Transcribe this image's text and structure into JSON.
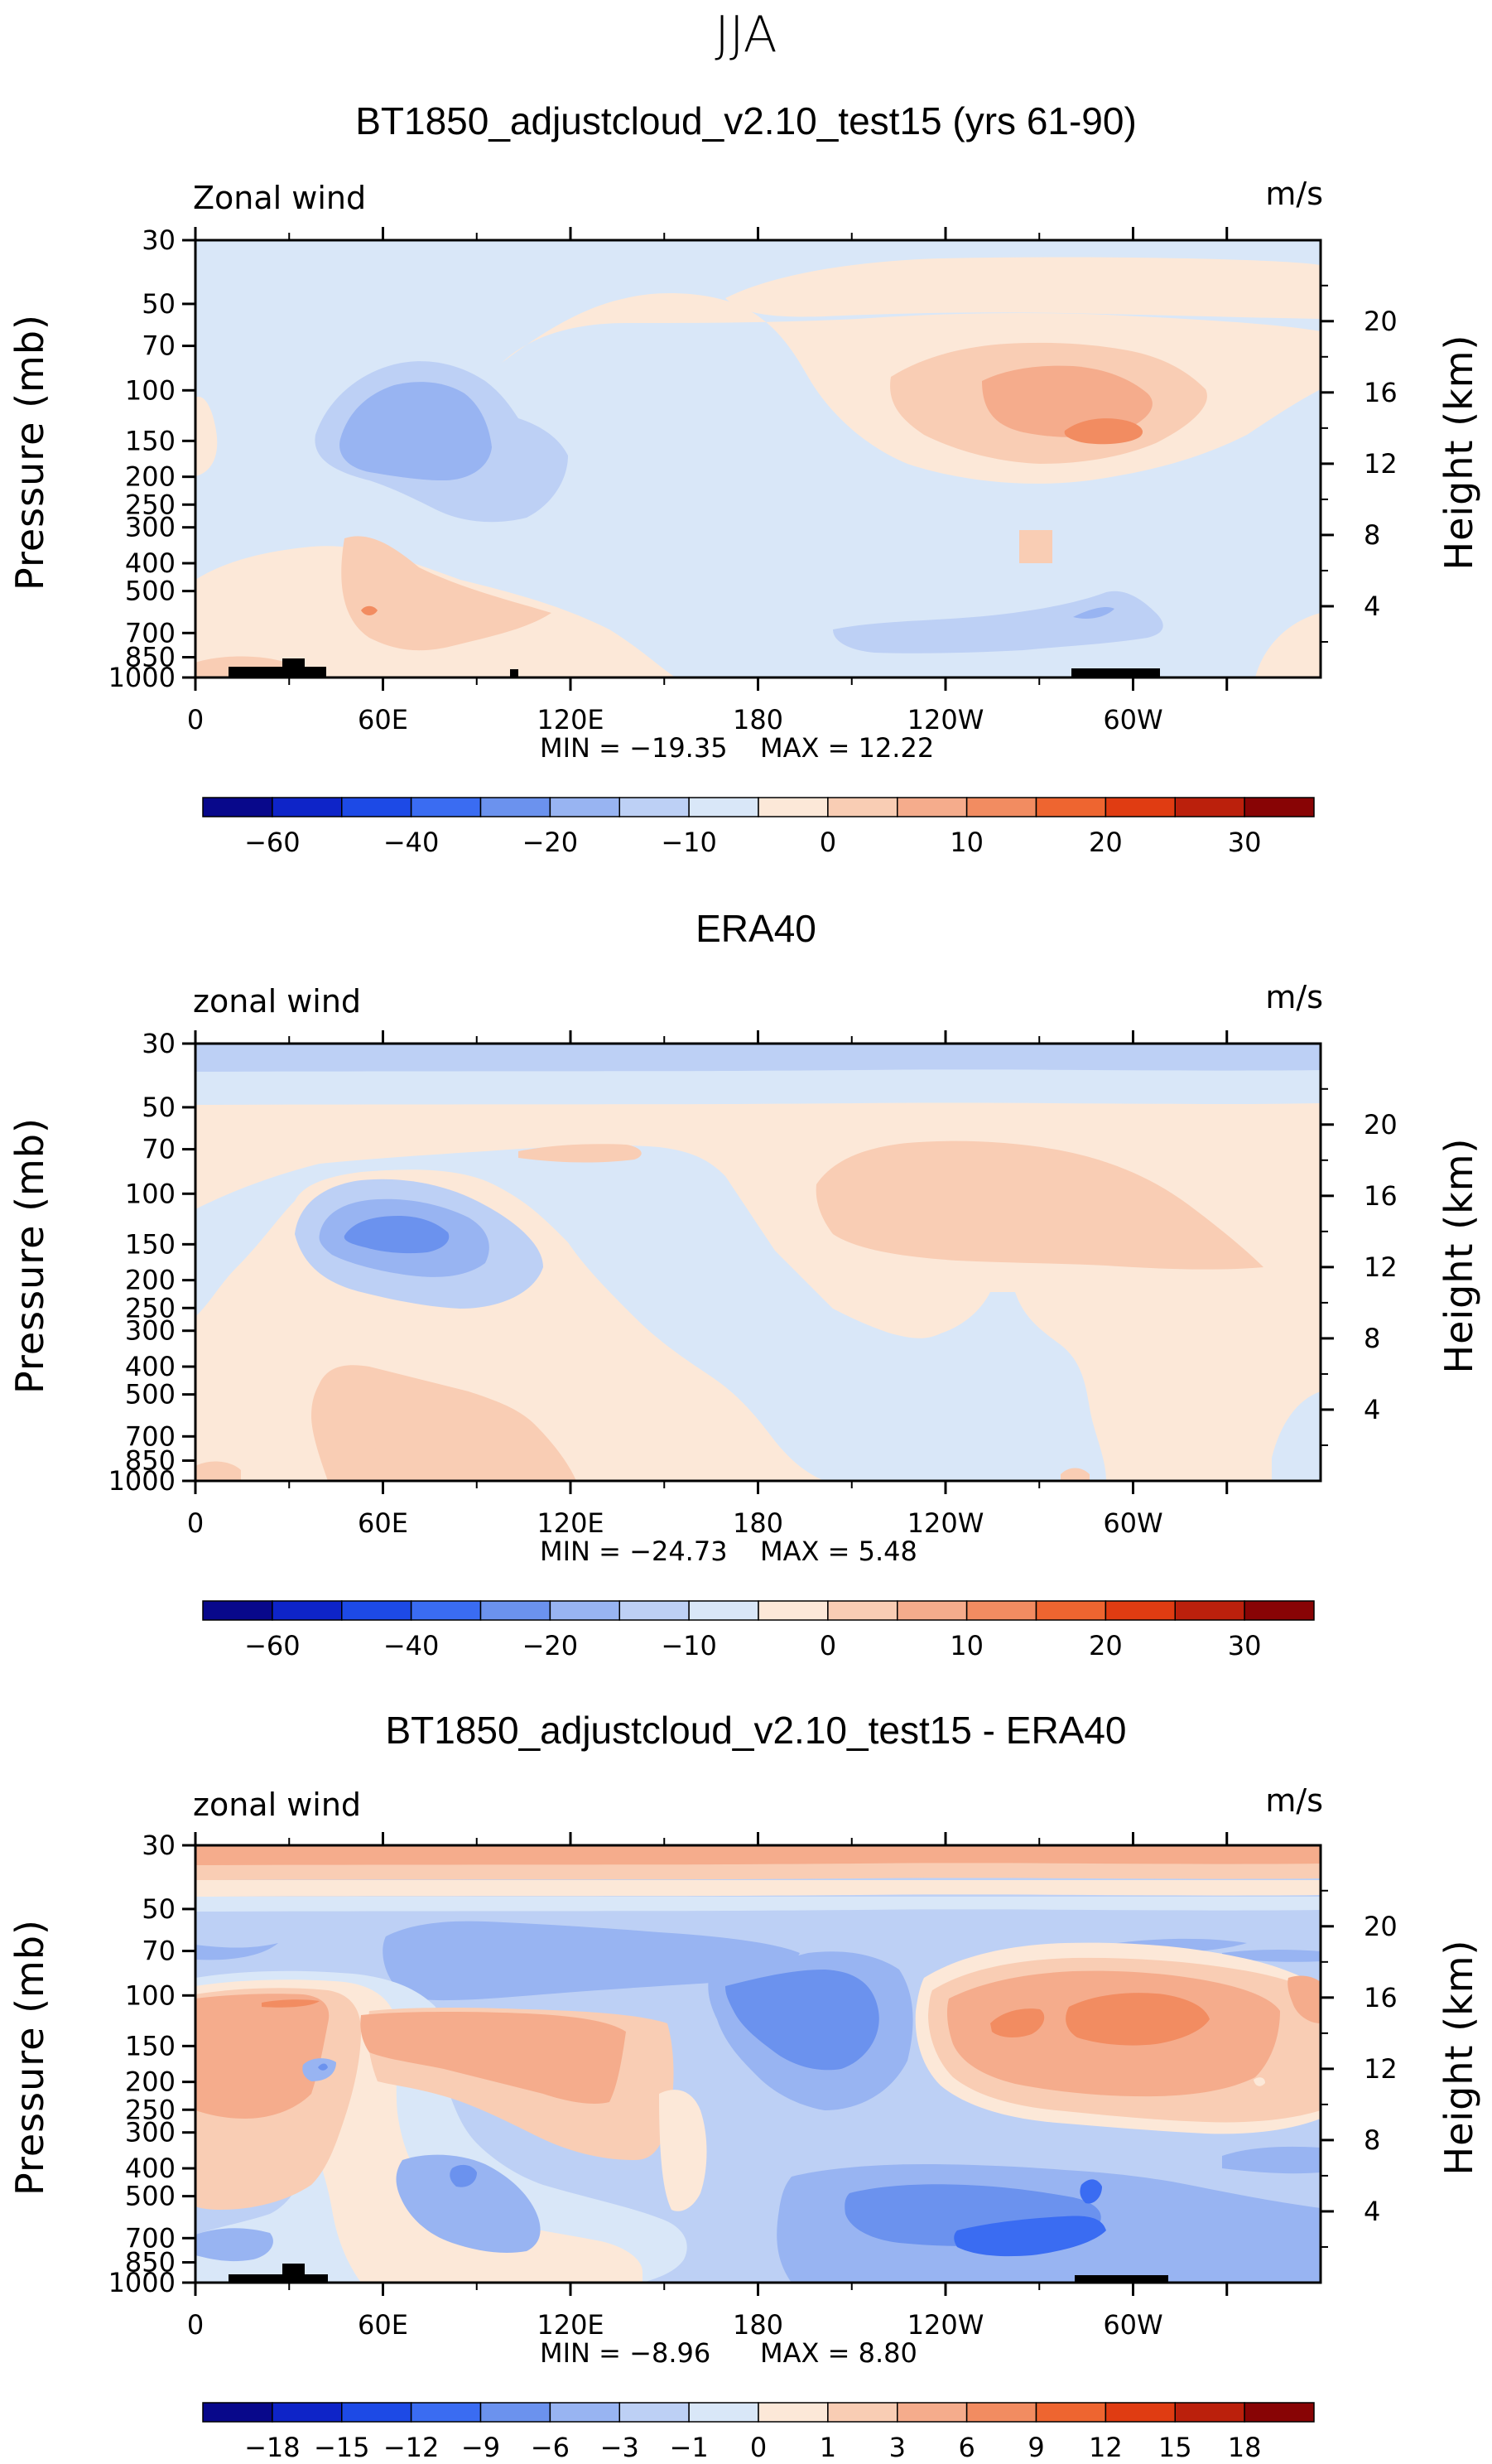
{
  "season": "JJA",
  "colors": {
    "scale": [
      "#08088b",
      "#0e24c8",
      "#1d4ae6",
      "#3a6cf2",
      "#6b92ee",
      "#98b4f2",
      "#bdd0f5",
      "#d9e7f8",
      "#fce8d8",
      "#f9cdb4",
      "#f5ac8c",
      "#f28c61",
      "#ee6530",
      "#e03c12",
      "#bb200c",
      "#880405"
    ],
    "land": "#000000"
  },
  "chart_data": [
    {
      "type": "heatmap",
      "title": "BT1850_adjustcloud_v2.10_test15 (yrs 61-90)",
      "variable_label": "Zonal wind",
      "units": "m/s",
      "ylabel": "Pressure (mb)",
      "ylabel_right": "Height (km)",
      "x_ticks": [
        "0",
        "60E",
        "120E",
        "180",
        "120W",
        "60W"
      ],
      "y_ticks": [
        "30",
        "50",
        "70",
        "100",
        "150",
        "200",
        "250",
        "300",
        "400",
        "500",
        "700",
        "850",
        "1000"
      ],
      "y2_ticks": [
        "20",
        "16",
        "12",
        "8",
        "4"
      ],
      "xlim": [
        0,
        360
      ],
      "ylim_pressure": [
        1000,
        30
      ],
      "min_label": "MIN = −19.35",
      "max_label": "MAX = 12.22",
      "min": -19.35,
      "max": 12.22,
      "colorbar_labels": [
        "−60",
        "−40",
        "−20",
        "−10",
        "0",
        "10",
        "20",
        "30"
      ]
    },
    {
      "type": "heatmap",
      "title": "ERA40",
      "variable_label": "zonal wind",
      "units": "m/s",
      "ylabel": "Pressure (mb)",
      "ylabel_right": "Height (km)",
      "x_ticks": [
        "0",
        "60E",
        "120E",
        "180",
        "120W",
        "60W"
      ],
      "y_ticks": [
        "30",
        "50",
        "70",
        "100",
        "150",
        "200",
        "250",
        "300",
        "400",
        "500",
        "700",
        "850",
        "1000"
      ],
      "y2_ticks": [
        "20",
        "16",
        "12",
        "8",
        "4"
      ],
      "xlim": [
        0,
        360
      ],
      "ylim_pressure": [
        1000,
        30
      ],
      "min_label": "MIN = −24.73",
      "max_label": "MAX = 5.48",
      "min": -24.73,
      "max": 5.48,
      "colorbar_labels": [
        "−60",
        "−40",
        "−20",
        "−10",
        "0",
        "10",
        "20",
        "30"
      ]
    },
    {
      "type": "heatmap",
      "title": "BT1850_adjustcloud_v2.10_test15 - ERA40",
      "variable_label": "zonal wind",
      "units": "m/s",
      "ylabel": "Pressure (mb)",
      "ylabel_right": "Height (km)",
      "x_ticks": [
        "0",
        "60E",
        "120E",
        "180",
        "120W",
        "60W"
      ],
      "y_ticks": [
        "30",
        "50",
        "70",
        "100",
        "150",
        "200",
        "250",
        "300",
        "400",
        "500",
        "700",
        "850",
        "1000"
      ],
      "y2_ticks": [
        "20",
        "16",
        "12",
        "8",
        "4"
      ],
      "xlim": [
        0,
        360
      ],
      "ylim_pressure": [
        1000,
        30
      ],
      "min_label": "MIN = −8.96",
      "max_label": "MAX = 8.80",
      "min": -8.96,
      "max": 8.8,
      "colorbar_labels": [
        "−18",
        "−15",
        "−12",
        "−9",
        "−6",
        "−3",
        "−1",
        "0",
        "1",
        "3",
        "6",
        "9",
        "12",
        "15",
        "18"
      ]
    }
  ]
}
